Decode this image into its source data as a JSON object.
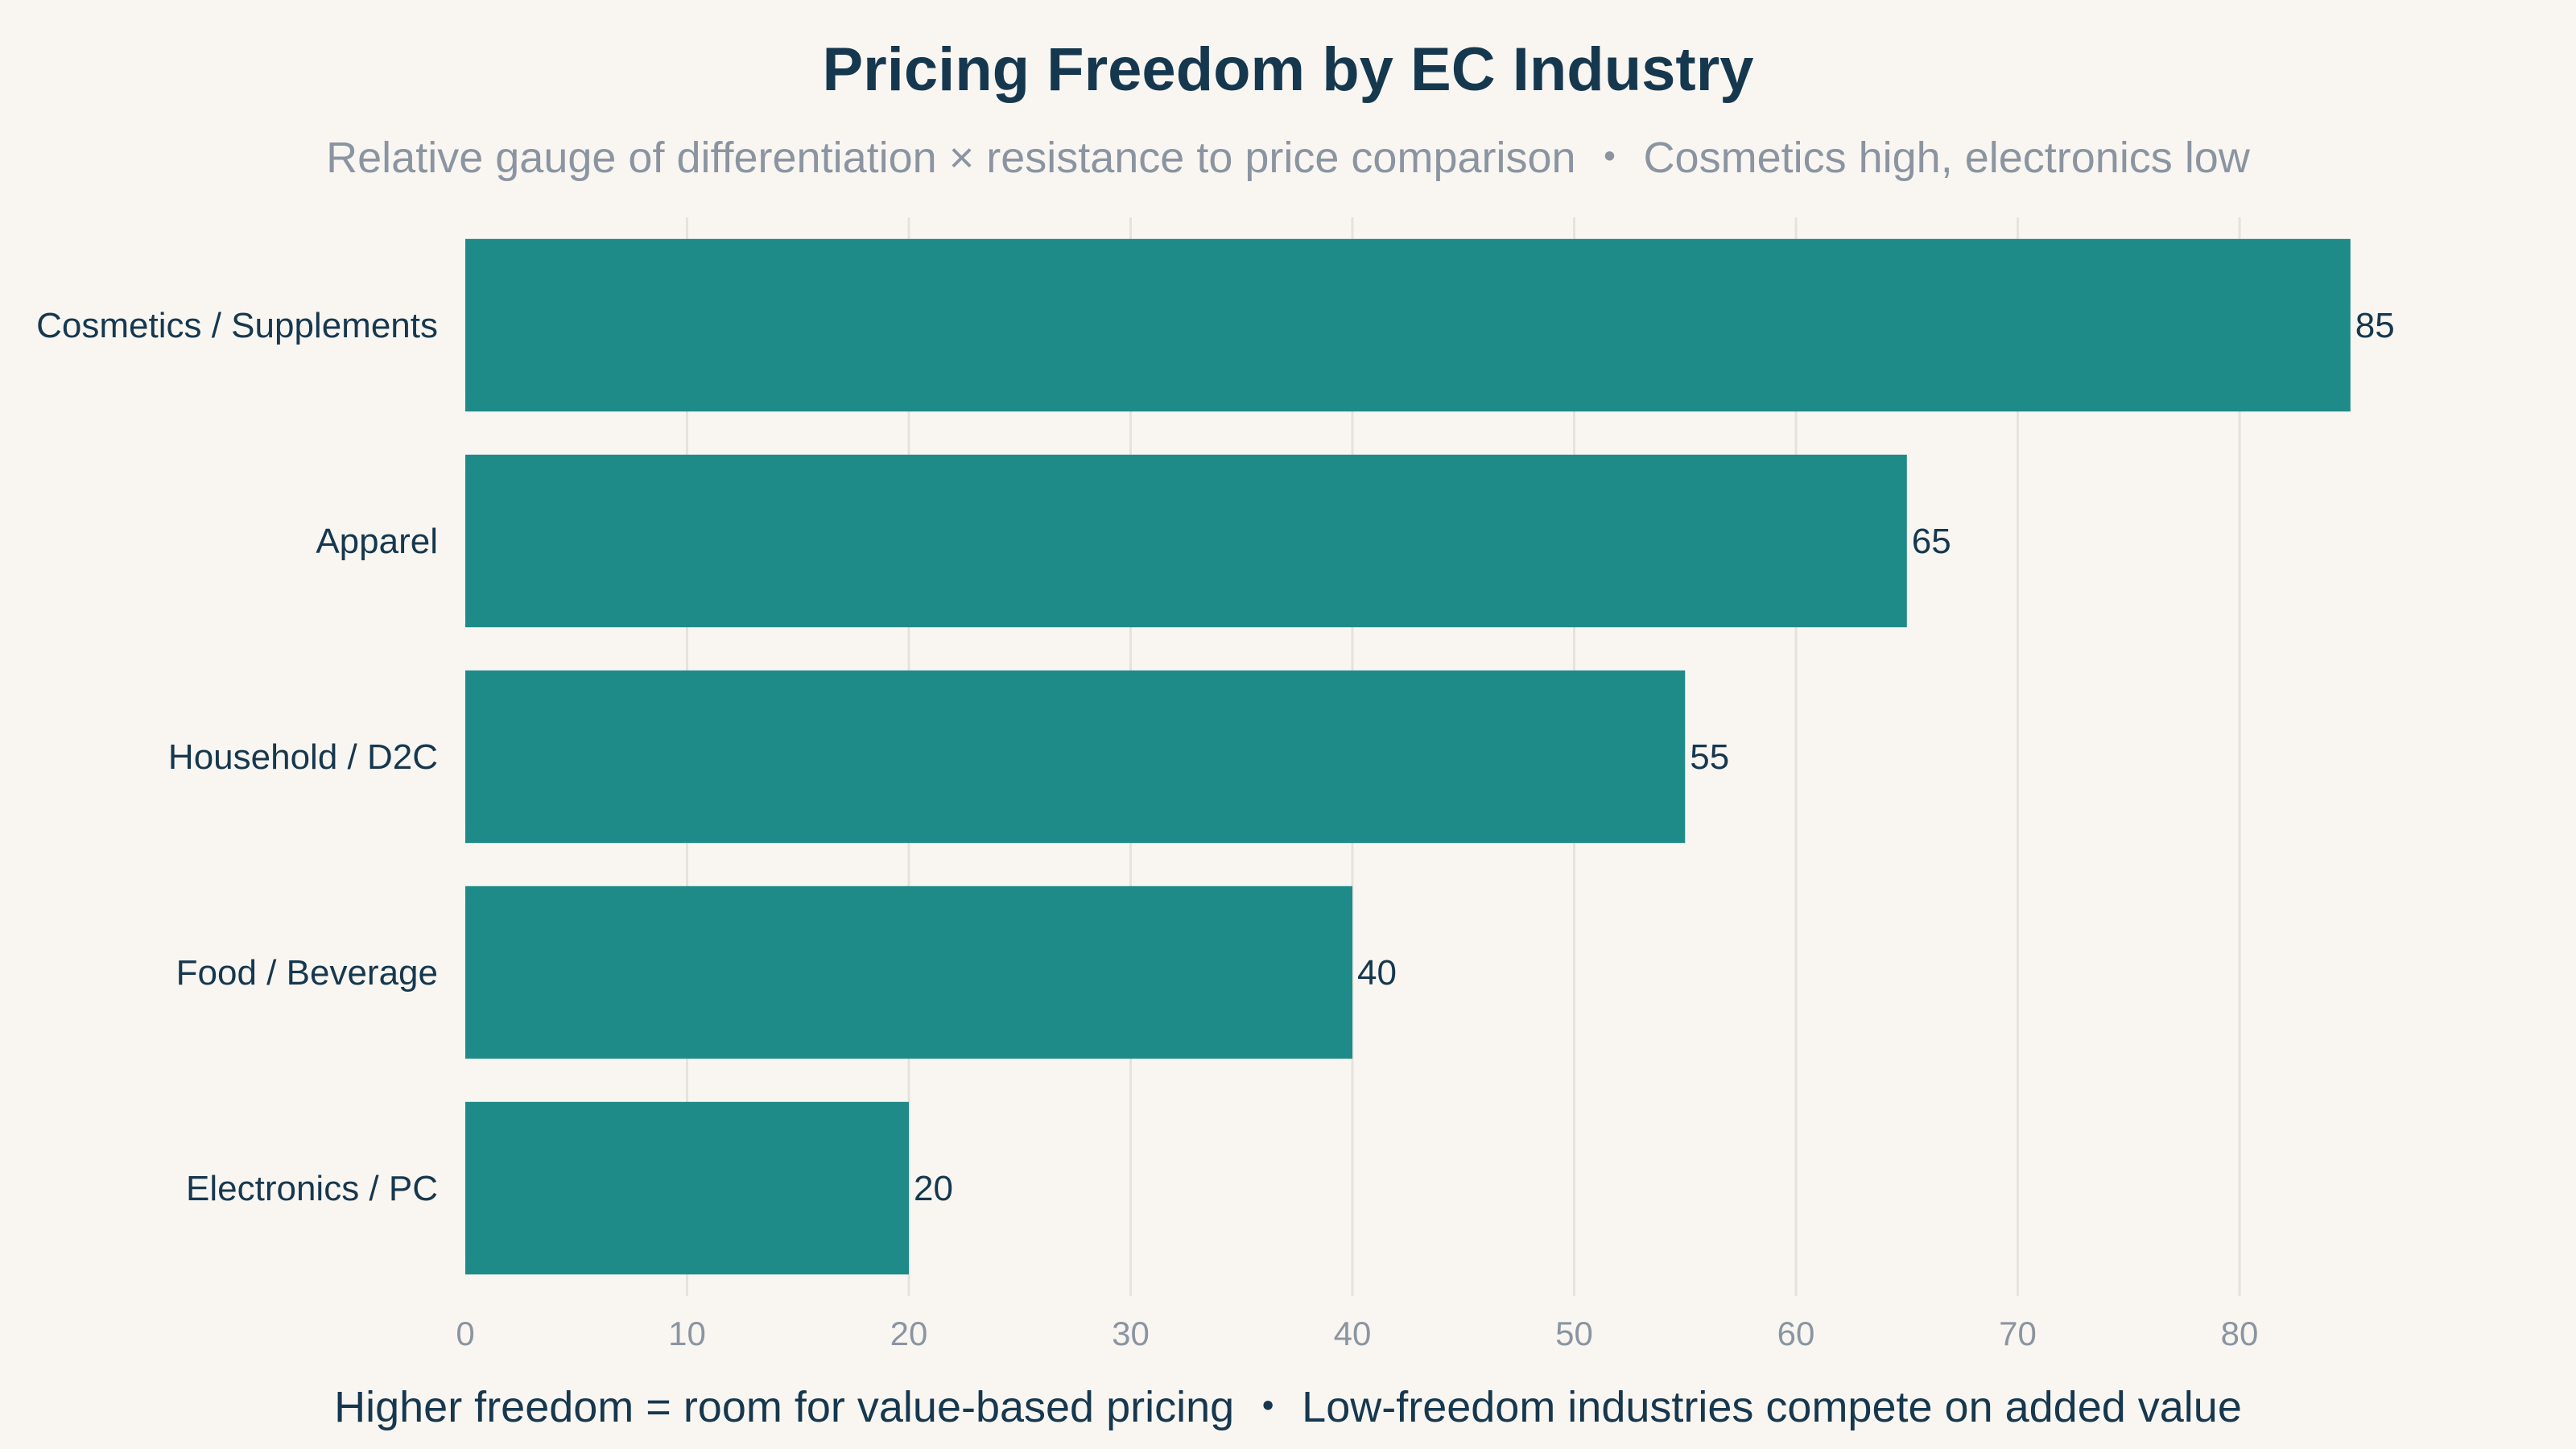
{
  "chart_data": {
    "type": "bar",
    "orientation": "horizontal",
    "title": "Pricing Freedom by EC Industry",
    "subtitle": "Relative gauge of differentiation × resistance to price comparison ・ Cosmetics high, electronics low",
    "footnote": "Higher freedom = room for value-based pricing ・ Low-freedom industries compete on added value",
    "xlabel": "",
    "ylabel": "",
    "categories": [
      "Cosmetics / Supplements",
      "Apparel",
      "Household / D2C",
      "Food / Beverage",
      "Electronics / PC"
    ],
    "values": [
      85,
      65,
      55,
      40,
      20
    ],
    "x_ticks": [
      0,
      10,
      20,
      30,
      40,
      50,
      60,
      70,
      80
    ],
    "xlim": [
      0,
      89
    ],
    "grid": true,
    "legend": "none",
    "bar_color": "#1f8b89"
  }
}
